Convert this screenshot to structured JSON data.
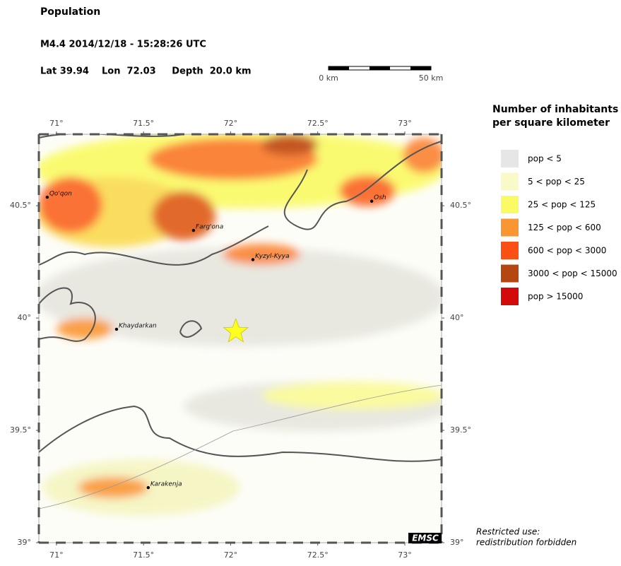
{
  "header": {
    "title": "Population",
    "event": "M4.4  2014/12/18 - 15:28:26 UTC",
    "location": "Lat 39.94    Lon  72.03     Depth  20.0 km"
  },
  "scale_bar": {
    "start": "0 km",
    "end": "50 km"
  },
  "map": {
    "lonlim": [
      70.899,
      73.211
    ],
    "latlim": [
      39,
      40.818
    ],
    "lon_ticks": [
      {
        "value": 71,
        "label": "71°"
      },
      {
        "value": 71.5,
        "label": "71.5°"
      },
      {
        "value": 72,
        "label": "72°"
      },
      {
        "value": 72.5,
        "label": "72.5°"
      },
      {
        "value": 73,
        "label": "73°"
      }
    ],
    "lat_ticks": [
      {
        "value": 39,
        "label": "39°"
      },
      {
        "value": 39.5,
        "label": "39.5°"
      },
      {
        "value": 40,
        "label": "40°"
      },
      {
        "value": 40.5,
        "label": "40.5°"
      }
    ],
    "epicenter": {
      "lon": 72.03,
      "lat": 39.94
    },
    "cities": [
      {
        "name": "Qo'qon",
        "lon": 70.947,
        "lat": 40.538
      },
      {
        "name": "Farg'ona",
        "lon": 71.787,
        "lat": 40.39
      },
      {
        "name": "Kyzyl-Kyya",
        "lon": 72.128,
        "lat": 40.26
      },
      {
        "name": "Osh",
        "lon": 72.81,
        "lat": 40.52
      },
      {
        "name": "Khaydarkan",
        "lon": 71.345,
        "lat": 39.95
      },
      {
        "name": "Karakenja",
        "lon": 71.527,
        "lat": 39.245
      }
    ]
  },
  "legend": {
    "title_lines": [
      "Number of inhabitants",
      "per square kilometer"
    ],
    "classes": [
      {
        "label": "pop < 5",
        "color": "#e6e6e6"
      },
      {
        "label": "5 < pop < 25",
        "color": "#fafac8"
      },
      {
        "label": "25 < pop < 125",
        "color": "#fafa64"
      },
      {
        "label": "125 < pop < 600",
        "color": "#fa9632"
      },
      {
        "label": "600 < pop < 3000",
        "color": "#fa5014"
      },
      {
        "label": "3000 < pop < 15000",
        "color": "#b4460f"
      },
      {
        "label": "pop > 15000",
        "color": "#d20a0a"
      }
    ]
  },
  "credit": "EMSC",
  "notice_lines": [
    "Restricted use:",
    "redistribution forbidden"
  ]
}
